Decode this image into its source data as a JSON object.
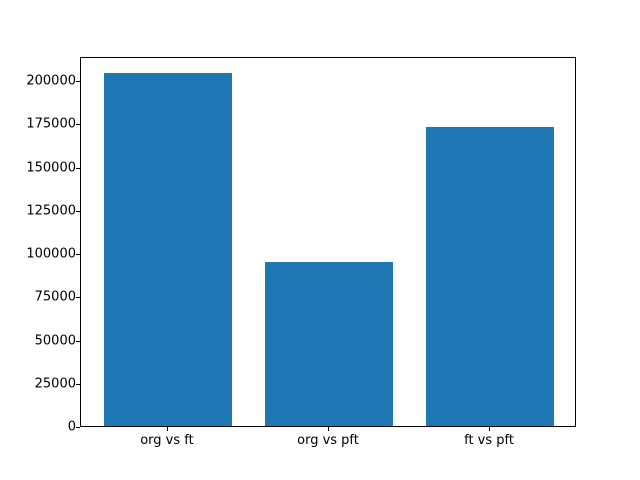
{
  "chart_data": {
    "type": "bar",
    "categories": [
      "org vs ft",
      "org vs pft",
      "ft vs pft"
    ],
    "values": [
      204000,
      95000,
      173000
    ],
    "title": "",
    "xlabel": "",
    "ylabel": "",
    "ylim": [
      0,
      214000
    ],
    "yticks": [
      0,
      25000,
      50000,
      75000,
      100000,
      125000,
      150000,
      175000,
      200000
    ],
    "bar_color": "#1f77b4",
    "grid": false,
    "legend": "none",
    "frame": "full-box"
  }
}
